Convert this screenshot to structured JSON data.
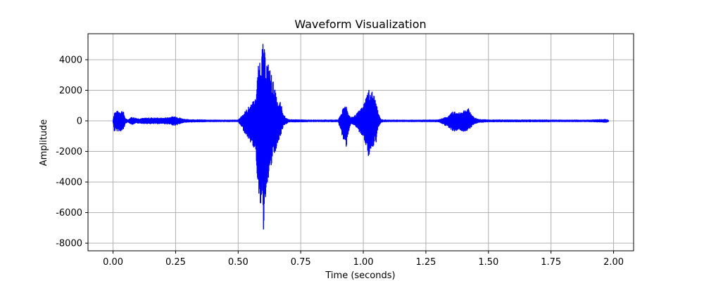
{
  "chart_data": {
    "type": "line",
    "title": "Waveform Visualization",
    "xlabel": "Time (seconds)",
    "ylabel": "Amplitude",
    "xlim": [
      -0.1,
      2.08
    ],
    "ylim": [
      -8500,
      5700
    ],
    "xticks": [
      0.0,
      0.25,
      0.5,
      0.75,
      1.0,
      1.25,
      1.5,
      1.75,
      2.0
    ],
    "xtick_labels": [
      "0.00",
      "0.25",
      "0.50",
      "0.75",
      "1.00",
      "1.25",
      "1.50",
      "1.75",
      "2.00"
    ],
    "yticks": [
      -8000,
      -6000,
      -4000,
      -2000,
      0,
      2000,
      4000
    ],
    "ytick_labels": [
      "-8000",
      "-6000",
      "-4000",
      "-2000",
      "0",
      "2000",
      "4000"
    ],
    "grid": true,
    "series": [
      {
        "color": "#0000ff",
        "envelope": {
          "t": [
            0.0,
            0.005,
            0.02,
            0.04,
            0.05,
            0.06,
            0.075,
            0.1,
            0.15,
            0.2,
            0.25,
            0.28,
            0.3,
            0.4,
            0.5,
            0.57,
            0.58,
            0.59,
            0.6,
            0.61,
            0.62,
            0.63,
            0.64,
            0.65,
            0.66,
            0.67,
            0.68,
            0.7,
            0.8,
            0.9,
            0.93,
            0.94,
            0.95,
            0.97,
            1.0,
            1.02,
            1.03,
            1.04,
            1.05,
            1.06,
            1.07,
            1.08,
            1.1,
            1.2,
            1.3,
            1.34,
            1.36,
            1.38,
            1.4,
            1.42,
            1.44,
            1.46,
            1.5,
            1.6,
            1.7,
            1.8,
            1.9,
            1.97,
            1.98
          ],
          "max": [
            50,
            600,
            650,
            700,
            120,
            80,
            250,
            150,
            200,
            180,
            300,
            120,
            80,
            50,
            50,
            1500,
            3500,
            4600,
            5100,
            4200,
            3800,
            3300,
            2600,
            1800,
            1000,
            1300,
            400,
            80,
            50,
            60,
            1200,
            500,
            200,
            400,
            1000,
            2100,
            2000,
            1900,
            1300,
            500,
            100,
            60,
            50,
            50,
            60,
            300,
            650,
            500,
            700,
            800,
            250,
            100,
            60,
            60,
            60,
            50,
            50,
            100,
            50
          ],
          "min": [
            -50,
            -700,
            -650,
            -700,
            -150,
            -80,
            -250,
            -150,
            -200,
            -180,
            -300,
            -120,
            -80,
            -50,
            -50,
            -2000,
            -4600,
            -5600,
            -7700,
            -5000,
            -3800,
            -3300,
            -2500,
            -2000,
            -1500,
            -1000,
            -400,
            -80,
            -50,
            -60,
            -1900,
            -800,
            -200,
            -400,
            -1100,
            -2300,
            -2100,
            -1800,
            -1600,
            -400,
            -100,
            -60,
            -50,
            -50,
            -60,
            -400,
            -700,
            -600,
            -700,
            -600,
            -250,
            -100,
            -60,
            -60,
            -60,
            -50,
            -50,
            -100,
            -50
          ]
        }
      }
    ]
  }
}
